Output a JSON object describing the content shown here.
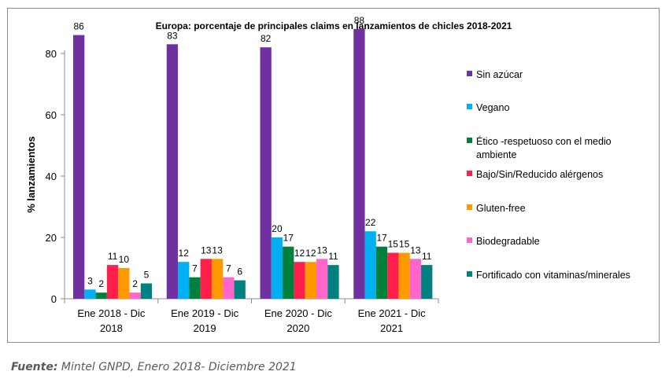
{
  "source": {
    "label": "Fuente:",
    "text": "Mintel GNPD, Enero 2018- Diciembre 2021"
  },
  "chart_data": {
    "type": "bar",
    "title": "Europa: porcentaje de principales claims en lanzamientos de chicles 2018-2021",
    "ylabel": "% lanzamientos",
    "xlabel": "",
    "ylim": [
      0,
      90
    ],
    "yticks": [
      0,
      20,
      40,
      60,
      80
    ],
    "grid": false,
    "legend_position": "right",
    "categories": [
      [
        "Ene 2018 - Dic",
        "2018"
      ],
      [
        "Ene 2019 - Dic",
        "2019"
      ],
      [
        "Ene 2020 - Dic",
        "2020"
      ],
      [
        "Ene 2021 - Dic",
        "2021"
      ]
    ],
    "series": [
      {
        "name": "Sin azúcar",
        "color": "#7030a0",
        "values": [
          86,
          83,
          82,
          88
        ]
      },
      {
        "name": "Vegano",
        "color": "#00b0f0",
        "values": [
          3,
          12,
          20,
          22
        ]
      },
      {
        "name": [
          "Ético -respetuoso con el medio",
          "ambiente"
        ],
        "color": "#00803c",
        "values": [
          2,
          7,
          17,
          17
        ]
      },
      {
        "name": "Bajo/Sin/Reducido alérgenos",
        "color": "#ff1f4a",
        "values": [
          11,
          13,
          12,
          15
        ]
      },
      {
        "name": "Gluten-free",
        "color": "#ff9900",
        "values": [
          10,
          13,
          12,
          15
        ]
      },
      {
        "name": "Biodegradable",
        "color": "#ff66cc",
        "values": [
          2,
          7,
          13,
          13
        ]
      },
      {
        "name": "Fortificado con vitaminas/minerales",
        "color": "#008080",
        "values": [
          5,
          6,
          11,
          11
        ]
      }
    ]
  }
}
